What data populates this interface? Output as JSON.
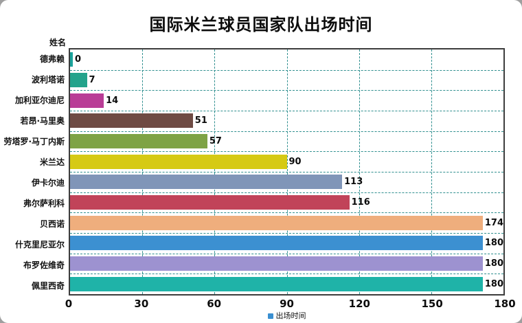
{
  "title": "国际米兰球员国家队出场时间",
  "y_axis_label": "姓名",
  "x_axis_label": "出场时间",
  "colors": {
    "grid": "#2f8f8f",
    "plot_border": "#3c3c3c",
    "text": "#0c0c0c",
    "axis_marker": "#3a8fd1"
  },
  "chart_data": {
    "type": "bar",
    "orientation": "horizontal",
    "title": "国际米兰球员国家队出场时间",
    "xlabel": "出场时间",
    "ylabel": "姓名",
    "categories": [
      "德弗赖",
      "波利塔诺",
      "加利亚尔迪尼",
      "若昂·马里奥",
      "劳塔罗·马丁内斯",
      "米兰达",
      "伊卡尔迪",
      "弗尔萨利科",
      "贝西诺",
      "什克里尼亚尔",
      "布罗佐维奇",
      "佩里西奇"
    ],
    "values": [
      0,
      7,
      14,
      51,
      57,
      90,
      113,
      116,
      174,
      180,
      180,
      180
    ],
    "bar_colors": [
      "#1ba39c",
      "#23a38b",
      "#b93d96",
      "#6f4b44",
      "#7ea345",
      "#d6ca14",
      "#8095b8",
      "#c14359",
      "#efae7d",
      "#3c90d1",
      "#9d92d0",
      "#1fb3a8"
    ],
    "x_ticks": [
      0,
      30,
      60,
      90,
      120,
      150,
      180
    ],
    "xlim": [
      0,
      180
    ],
    "grid": "dashed",
    "legend": "none"
  }
}
